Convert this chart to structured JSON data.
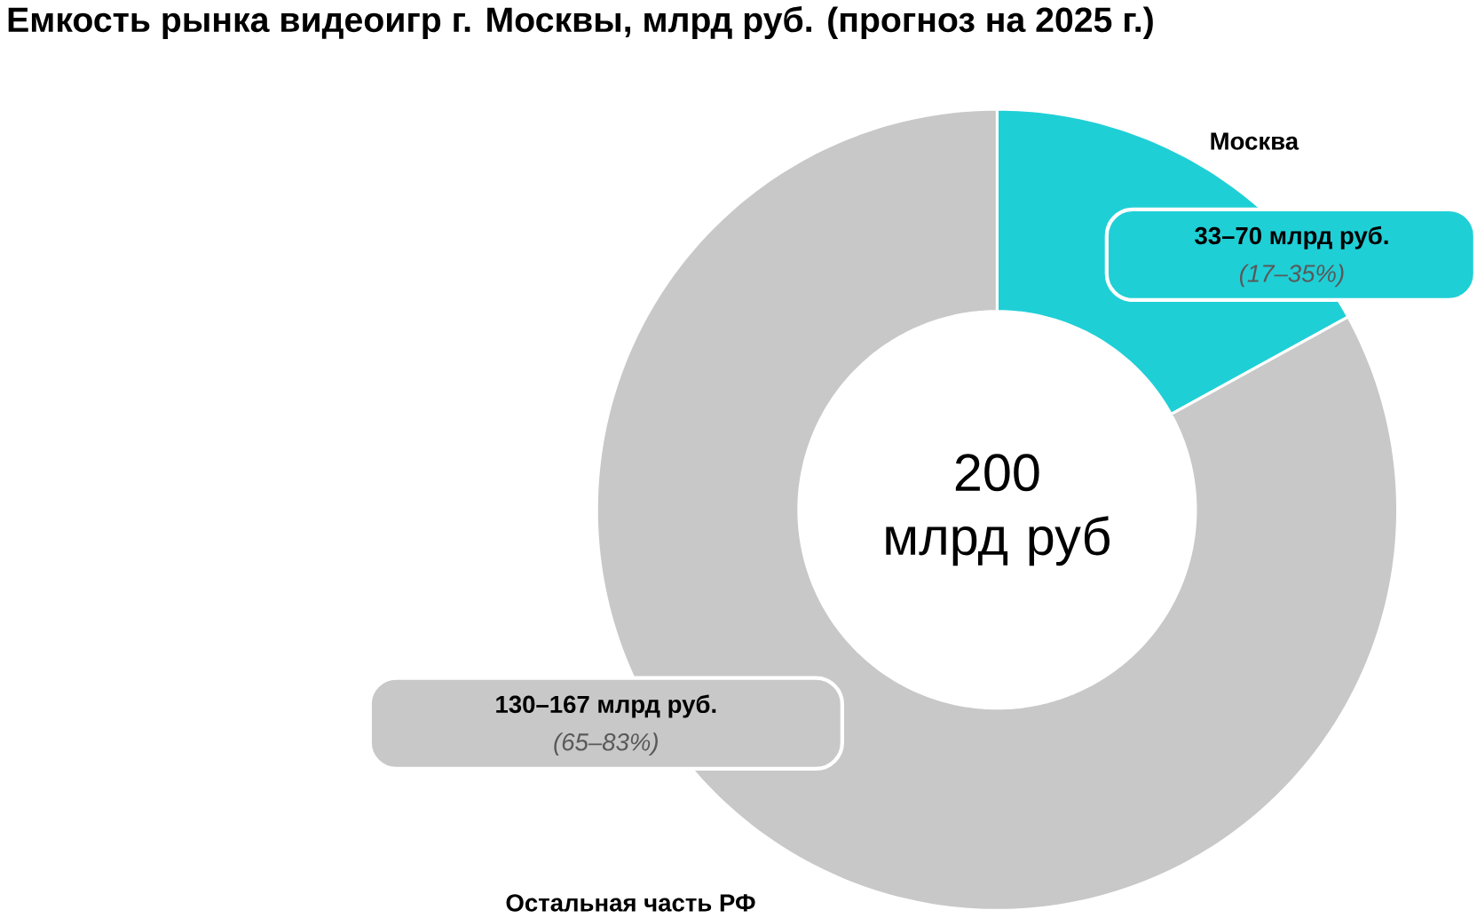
{
  "chart_data": {
    "type": "donut",
    "title": "Емкость рынка видеоигр г. Москвы, млрд руб. (прогноз на 2025 г.)",
    "categories": [
      "Москва",
      "Остальная часть РФ"
    ],
    "values": [
      17,
      83
    ],
    "colors": [
      "#1fcfd6",
      "#c8c8c8"
    ],
    "value_labels": [
      "33–70 млрд руб.",
      "130–167 млрд руб."
    ],
    "annotations": [
      "200 млрд руб",
      "(17–35%)",
      "(65–83%)"
    ]
  }
}
